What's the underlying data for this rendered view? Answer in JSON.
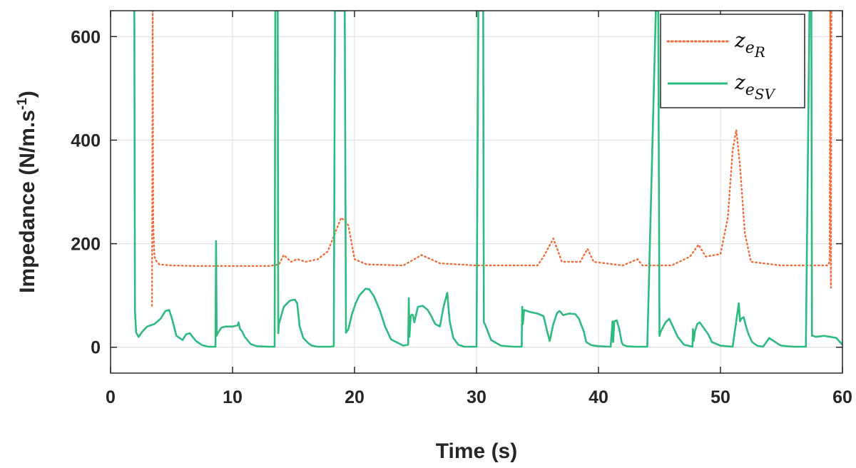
{
  "chart_data": {
    "type": "line",
    "xlabel": "Time (s)",
    "ylabel": "Impedance (N/m.s",
    "ylabel_sup": "-1",
    "ylabel_close": ")",
    "xlim": [
      0,
      60
    ],
    "ylim": [
      -50,
      650
    ],
    "xticks": [
      0,
      10,
      20,
      30,
      40,
      50,
      60
    ],
    "yticks": [
      0,
      200,
      400,
      600
    ],
    "xtick_labels": [
      "0",
      "10",
      "20",
      "30",
      "40",
      "50",
      "60"
    ],
    "ytick_labels": [
      "0",
      "200",
      "400",
      "600"
    ],
    "grid": true,
    "legend_position": "top-right",
    "series": [
      {
        "name": "z_e_R",
        "legend_main": "z",
        "legend_sub1": "e",
        "legend_sub2": "R",
        "color": "#f26b3a",
        "style": "dotted",
        "x": [
          3.4,
          3.45,
          3.5,
          3.55,
          3.6,
          3.7,
          4.0,
          5.0,
          7.0,
          10.0,
          13.0,
          13.8,
          14.2,
          14.8,
          15.3,
          16.0,
          17.0,
          17.8,
          18.4,
          18.9,
          19.2,
          19.5,
          20.0,
          21.0,
          24.0,
          25.5,
          27.0,
          30.0,
          35.0,
          35.5,
          36.3,
          37.0,
          38.5,
          39.1,
          39.6,
          42.0,
          43.2,
          43.6,
          46.0,
          47.5,
          48.2,
          48.8,
          50.0,
          50.6,
          51.0,
          51.3,
          51.6,
          52.0,
          52.5,
          55.0,
          58.8,
          58.95,
          59.0,
          59.05,
          59.1,
          59.2
        ],
        "y": [
          80,
          650,
          250,
          200,
          175,
          168,
          160,
          158,
          157,
          157,
          157,
          160,
          178,
          165,
          170,
          165,
          170,
          185,
          220,
          250,
          245,
          235,
          170,
          160,
          158,
          178,
          162,
          158,
          158,
          175,
          210,
          165,
          165,
          190,
          165,
          158,
          170,
          158,
          158,
          175,
          198,
          175,
          180,
          250,
          380,
          420,
          350,
          220,
          165,
          158,
          158,
          165,
          650,
          115,
          650,
          650
        ]
      },
      {
        "name": "z_e_SV",
        "legend_main": "z",
        "legend_sub1": "e",
        "legend_sub2": "SV",
        "color": "#2dbb7f",
        "style": "solid",
        "x": [
          1.9,
          1.95,
          2.0,
          2.1,
          2.3,
          2.6,
          3.0,
          3.6,
          4.1,
          4.5,
          4.8,
          5.0,
          5.4,
          5.9,
          6.2,
          6.5,
          7.0,
          7.5,
          8.0,
          8.6,
          8.65,
          8.7,
          8.8,
          9.1,
          9.4,
          10.0,
          10.4,
          10.5,
          10.6,
          10.8,
          11.0,
          11.5,
          12.0,
          13.0,
          13.45,
          13.5,
          13.55,
          13.65,
          13.7,
          13.75,
          13.8,
          14.2,
          14.7,
          15.1,
          15.3,
          15.5,
          15.8,
          16.2,
          16.5,
          17.0,
          18.0,
          18.3,
          18.4,
          18.5,
          19.2,
          19.3,
          19.5,
          19.8,
          20.1,
          20.4,
          20.9,
          21.2,
          21.6,
          22.1,
          22.5,
          23.0,
          24.0,
          24.4,
          24.45,
          24.5,
          24.6,
          24.7,
          24.8,
          24.9,
          25.2,
          25.6,
          26.0,
          26.3,
          26.6,
          27.0,
          27.3,
          27.6,
          27.8,
          28.1,
          28.5,
          29.0,
          30.0,
          30.15,
          30.2,
          30.4,
          30.55,
          30.6,
          30.7,
          30.8,
          31.2,
          32.0,
          33.0,
          33.7,
          33.75,
          33.8,
          33.9,
          34.4,
          35.0,
          35.5,
          35.8,
          36.0,
          36.3,
          36.6,
          36.8,
          36.9,
          37.1,
          37.6,
          38.1,
          38.4,
          38.8,
          39.0,
          39.4,
          40.0,
          41.0,
          41.15,
          41.2,
          41.3,
          41.5,
          41.7,
          41.9,
          42.0,
          42.3,
          43.0,
          44.0,
          44.7,
          44.75,
          44.9,
          45.0,
          45.1,
          45.5,
          45.8,
          46.1,
          46.5,
          47.0,
          47.7,
          47.75,
          47.8,
          47.9,
          48.1,
          48.3,
          48.6,
          49.0,
          49.3,
          50.0,
          51.0,
          51.5,
          51.6,
          51.7,
          51.9,
          52.1,
          52.3,
          52.6,
          53.0,
          53.5,
          54.0,
          54.1,
          54.5,
          54.8,
          55.0,
          55.5,
          56.0,
          57.0,
          57.3,
          57.35,
          57.45,
          57.5,
          57.6,
          57.8,
          58.5,
          59.0,
          59.5,
          59.8,
          60.0
        ],
        "y": [
          650,
          650,
          70,
          28,
          20,
          30,
          40,
          45,
          55,
          70,
          72,
          58,
          22,
          14,
          25,
          27,
          12,
          4,
          1,
          1,
          205,
          22,
          28,
          38,
          40,
          40,
          42,
          48,
          36,
          30,
          20,
          6,
          2,
          1,
          1,
          650,
          650,
          650,
          650,
          27,
          45,
          78,
          90,
          92,
          85,
          40,
          18,
          8,
          3,
          1,
          1,
          2,
          650,
          650,
          650,
          28,
          35,
          65,
          85,
          100,
          113,
          112,
          98,
          70,
          40,
          15,
          3,
          5,
          95,
          20,
          60,
          63,
          62,
          48,
          78,
          80,
          72,
          60,
          45,
          40,
          78,
          105,
          50,
          18,
          5,
          1,
          1,
          650,
          650,
          650,
          650,
          48,
          44,
          38,
          14,
          3,
          1,
          1,
          78,
          45,
          72,
          68,
          65,
          60,
          30,
          12,
          45,
          66,
          70,
          68,
          62,
          65,
          64,
          55,
          30,
          10,
          4,
          2,
          1,
          50,
          10,
          50,
          52,
          35,
          10,
          5,
          2,
          1,
          1,
          650,
          650,
          650,
          22,
          30,
          48,
          55,
          40,
          20,
          5,
          1,
          35,
          12,
          30,
          45,
          48,
          38,
          25,
          10,
          3,
          1,
          85,
          50,
          55,
          58,
          40,
          25,
          10,
          3,
          1,
          18,
          16,
          10,
          5,
          3,
          2,
          1,
          1,
          650,
          650,
          650,
          22,
          22,
          20,
          22,
          20,
          18,
          10,
          5
        ]
      }
    ]
  }
}
